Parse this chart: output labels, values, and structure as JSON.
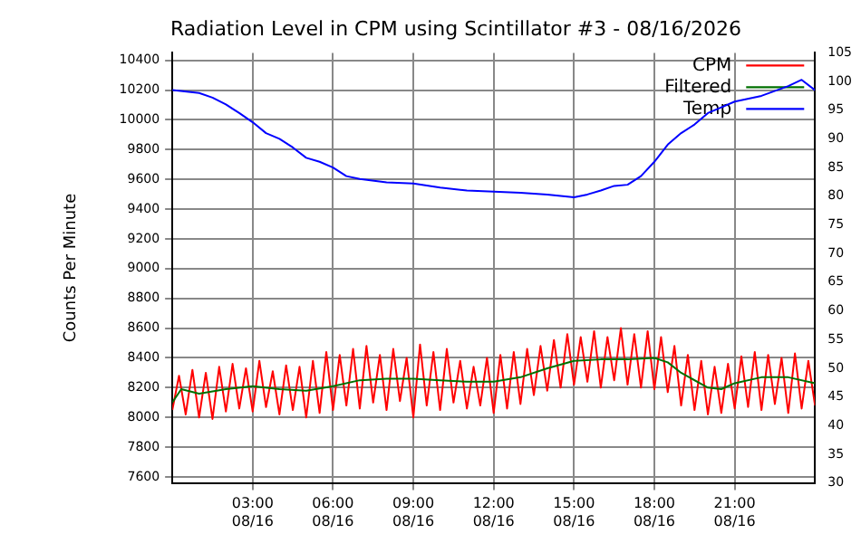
{
  "chart_data": {
    "type": "line",
    "title": "Radiation Level in CPM using Scintillator #3 - 08/16/2026",
    "ylabel": "Counts Per Minute",
    "xlim": [
      "2026-08-16T00:00",
      "2026-08-17T00:00"
    ],
    "xticks": [
      {
        "value": "2026-08-16T03:00",
        "label": "03:00 08/16"
      },
      {
        "value": "2026-08-16T06:00",
        "label": "06:00 08/16"
      },
      {
        "value": "2026-08-16T09:00",
        "label": "09:00 08/16"
      },
      {
        "value": "2026-08-16T12:00",
        "label": "12:00 08/16"
      },
      {
        "value": "2026-08-16T15:00",
        "label": "15:00 08/16"
      },
      {
        "value": "2026-08-16T18:00",
        "label": "18:00 08/16"
      },
      {
        "value": "2026-08-16T21:00",
        "label": "21:00 08/16"
      }
    ],
    "ylim": [
      7560,
      10450
    ],
    "yticks": [
      7600,
      7800,
      8000,
      8200,
      8400,
      8600,
      8800,
      9000,
      9200,
      9400,
      9600,
      9800,
      10000,
      10200,
      10400
    ],
    "y2lim": [
      30,
      105
    ],
    "y2ticks": [
      30,
      35,
      40,
      45,
      50,
      55,
      60,
      65,
      70,
      75,
      80,
      85,
      90,
      95,
      100,
      105
    ],
    "grid": true,
    "legend": "top right",
    "marker": "none",
    "line_style": "solid",
    "series": [
      {
        "name": "CPM",
        "color": "#ff0000",
        "x": [
          "2026-08-16T00:00",
          "2026-08-16T00:15",
          "2026-08-16T00:30",
          "2026-08-16T00:45",
          "2026-08-16T01:00",
          "2026-08-16T01:15",
          "2026-08-16T01:30",
          "2026-08-16T01:45",
          "2026-08-16T02:00",
          "2026-08-16T02:15",
          "2026-08-16T02:30",
          "2026-08-16T02:45",
          "2026-08-16T03:00",
          "2026-08-16T03:15",
          "2026-08-16T03:30",
          "2026-08-16T03:45",
          "2026-08-16T04:00",
          "2026-08-16T04:15",
          "2026-08-16T04:30",
          "2026-08-16T04:45",
          "2026-08-16T05:00",
          "2026-08-16T05:15",
          "2026-08-16T05:30",
          "2026-08-16T05:45",
          "2026-08-16T06:00",
          "2026-08-16T06:15",
          "2026-08-16T06:30",
          "2026-08-16T06:45",
          "2026-08-16T07:00",
          "2026-08-16T07:15",
          "2026-08-16T07:30",
          "2026-08-16T07:45",
          "2026-08-16T08:00",
          "2026-08-16T08:15",
          "2026-08-16T08:30",
          "2026-08-16T08:45",
          "2026-08-16T09:00",
          "2026-08-16T09:15",
          "2026-08-16T09:30",
          "2026-08-16T09:45",
          "2026-08-16T10:00",
          "2026-08-16T10:15",
          "2026-08-16T10:30",
          "2026-08-16T10:45",
          "2026-08-16T11:00",
          "2026-08-16T11:15",
          "2026-08-16T11:30",
          "2026-08-16T11:45",
          "2026-08-16T12:00",
          "2026-08-16T12:15",
          "2026-08-16T12:30",
          "2026-08-16T12:45",
          "2026-08-16T13:00",
          "2026-08-16T13:15",
          "2026-08-16T13:30",
          "2026-08-16T13:45",
          "2026-08-16T14:00",
          "2026-08-16T14:15",
          "2026-08-16T14:30",
          "2026-08-16T14:45",
          "2026-08-16T15:00",
          "2026-08-16T15:15",
          "2026-08-16T15:30",
          "2026-08-16T15:45",
          "2026-08-16T16:00",
          "2026-08-16T16:15",
          "2026-08-16T16:30",
          "2026-08-16T16:45",
          "2026-08-16T17:00",
          "2026-08-16T17:15",
          "2026-08-16T17:30",
          "2026-08-16T17:45",
          "2026-08-16T18:00",
          "2026-08-16T18:15",
          "2026-08-16T18:30",
          "2026-08-16T18:45",
          "2026-08-16T19:00",
          "2026-08-16T19:15",
          "2026-08-16T19:30",
          "2026-08-16T19:45",
          "2026-08-16T20:00",
          "2026-08-16T20:15",
          "2026-08-16T20:30",
          "2026-08-16T20:45",
          "2026-08-16T21:00",
          "2026-08-16T21:15",
          "2026-08-16T21:30",
          "2026-08-16T21:45",
          "2026-08-16T22:00",
          "2026-08-16T22:15",
          "2026-08-16T22:30",
          "2026-08-16T22:45",
          "2026-08-16T23:00",
          "2026-08-16T23:15",
          "2026-08-16T23:30",
          "2026-08-16T23:45",
          "2026-08-17T00:00"
        ],
        "values": [
          8050,
          8280,
          8020,
          8320,
          8000,
          8300,
          7990,
          8340,
          8040,
          8360,
          8060,
          8330,
          8040,
          8380,
          8070,
          8310,
          8020,
          8350,
          8050,
          8340,
          8000,
          8380,
          8030,
          8440,
          8050,
          8420,
          8080,
          8460,
          8060,
          8480,
          8100,
          8420,
          8050,
          8460,
          8110,
          8400,
          8000,
          8490,
          8080,
          8440,
          8050,
          8460,
          8100,
          8380,
          8060,
          8340,
          8080,
          8400,
          8030,
          8420,
          8060,
          8440,
          8090,
          8460,
          8150,
          8480,
          8180,
          8520,
          8200,
          8560,
          8220,
          8540,
          8240,
          8580,
          8200,
          8540,
          8250,
          8600,
          8220,
          8560,
          8200,
          8580,
          8190,
          8540,
          8170,
          8480,
          8080,
          8420,
          8050,
          8380,
          8020,
          8340,
          8030,
          8360,
          8060,
          8410,
          8070,
          8440,
          8050,
          8420,
          8090,
          8400,
          8030,
          8430,
          8060,
          8380,
          8080
        ]
      },
      {
        "name": "Filtered",
        "color": "#007000",
        "x": [
          "2026-08-16T00:00",
          "2026-08-16T00:20",
          "2026-08-16T01:00",
          "2026-08-16T02:00",
          "2026-08-16T03:00",
          "2026-08-16T04:00",
          "2026-08-16T05:00",
          "2026-08-16T06:00",
          "2026-08-16T07:00",
          "2026-08-16T08:00",
          "2026-08-16T09:00",
          "2026-08-16T10:00",
          "2026-08-16T11:00",
          "2026-08-16T12:00",
          "2026-08-16T13:00",
          "2026-08-16T14:00",
          "2026-08-16T15:00",
          "2026-08-16T16:00",
          "2026-08-16T17:00",
          "2026-08-16T18:00",
          "2026-08-16T18:30",
          "2026-08-16T19:00",
          "2026-08-16T20:00",
          "2026-08-16T20:30",
          "2026-08-16T21:00",
          "2026-08-16T22:00",
          "2026-08-16T23:00",
          "2026-08-17T00:00"
        ],
        "values": [
          8100,
          8190,
          8160,
          8190,
          8210,
          8190,
          8180,
          8210,
          8250,
          8260,
          8260,
          8250,
          8240,
          8240,
          8270,
          8330,
          8380,
          8390,
          8390,
          8400,
          8370,
          8300,
          8200,
          8190,
          8230,
          8270,
          8270,
          8230
        ]
      },
      {
        "name": "Temp",
        "color": "#0000ff",
        "axis": "y2",
        "x": [
          "2026-08-16T00:00",
          "2026-08-16T01:00",
          "2026-08-16T01:30",
          "2026-08-16T02:00",
          "2026-08-16T02:30",
          "2026-08-16T03:00",
          "2026-08-16T03:30",
          "2026-08-16T04:00",
          "2026-08-16T04:30",
          "2026-08-16T05:00",
          "2026-08-16T05:30",
          "2026-08-16T06:00",
          "2026-08-16T06:30",
          "2026-08-16T07:00",
          "2026-08-16T08:00",
          "2026-08-16T09:00",
          "2026-08-16T10:00",
          "2026-08-16T11:00",
          "2026-08-16T12:00",
          "2026-08-16T13:00",
          "2026-08-16T14:00",
          "2026-08-16T15:00",
          "2026-08-16T15:30",
          "2026-08-16T16:00",
          "2026-08-16T16:30",
          "2026-08-16T17:00",
          "2026-08-16T17:30",
          "2026-08-16T18:00",
          "2026-08-16T18:30",
          "2026-08-16T19:00",
          "2026-08-16T19:30",
          "2026-08-16T20:00",
          "2026-08-16T20:30",
          "2026-08-16T21:00",
          "2026-08-16T22:00",
          "2026-08-16T23:00",
          "2026-08-16T23:30",
          "2026-08-17T00:00"
        ],
        "values": [
          98.5,
          98,
          97.2,
          96,
          94.5,
          92.9,
          91,
          90,
          88.5,
          86.7,
          86,
          85,
          83.5,
          83,
          82.4,
          82.2,
          81.5,
          81,
          80.8,
          80.6,
          80.3,
          79.8,
          80.3,
          81,
          81.8,
          82,
          83.5,
          86,
          89,
          91,
          92.5,
          94.5,
          95.5,
          96.5,
          97.5,
          99.2,
          100.3,
          98.5
        ]
      }
    ]
  }
}
